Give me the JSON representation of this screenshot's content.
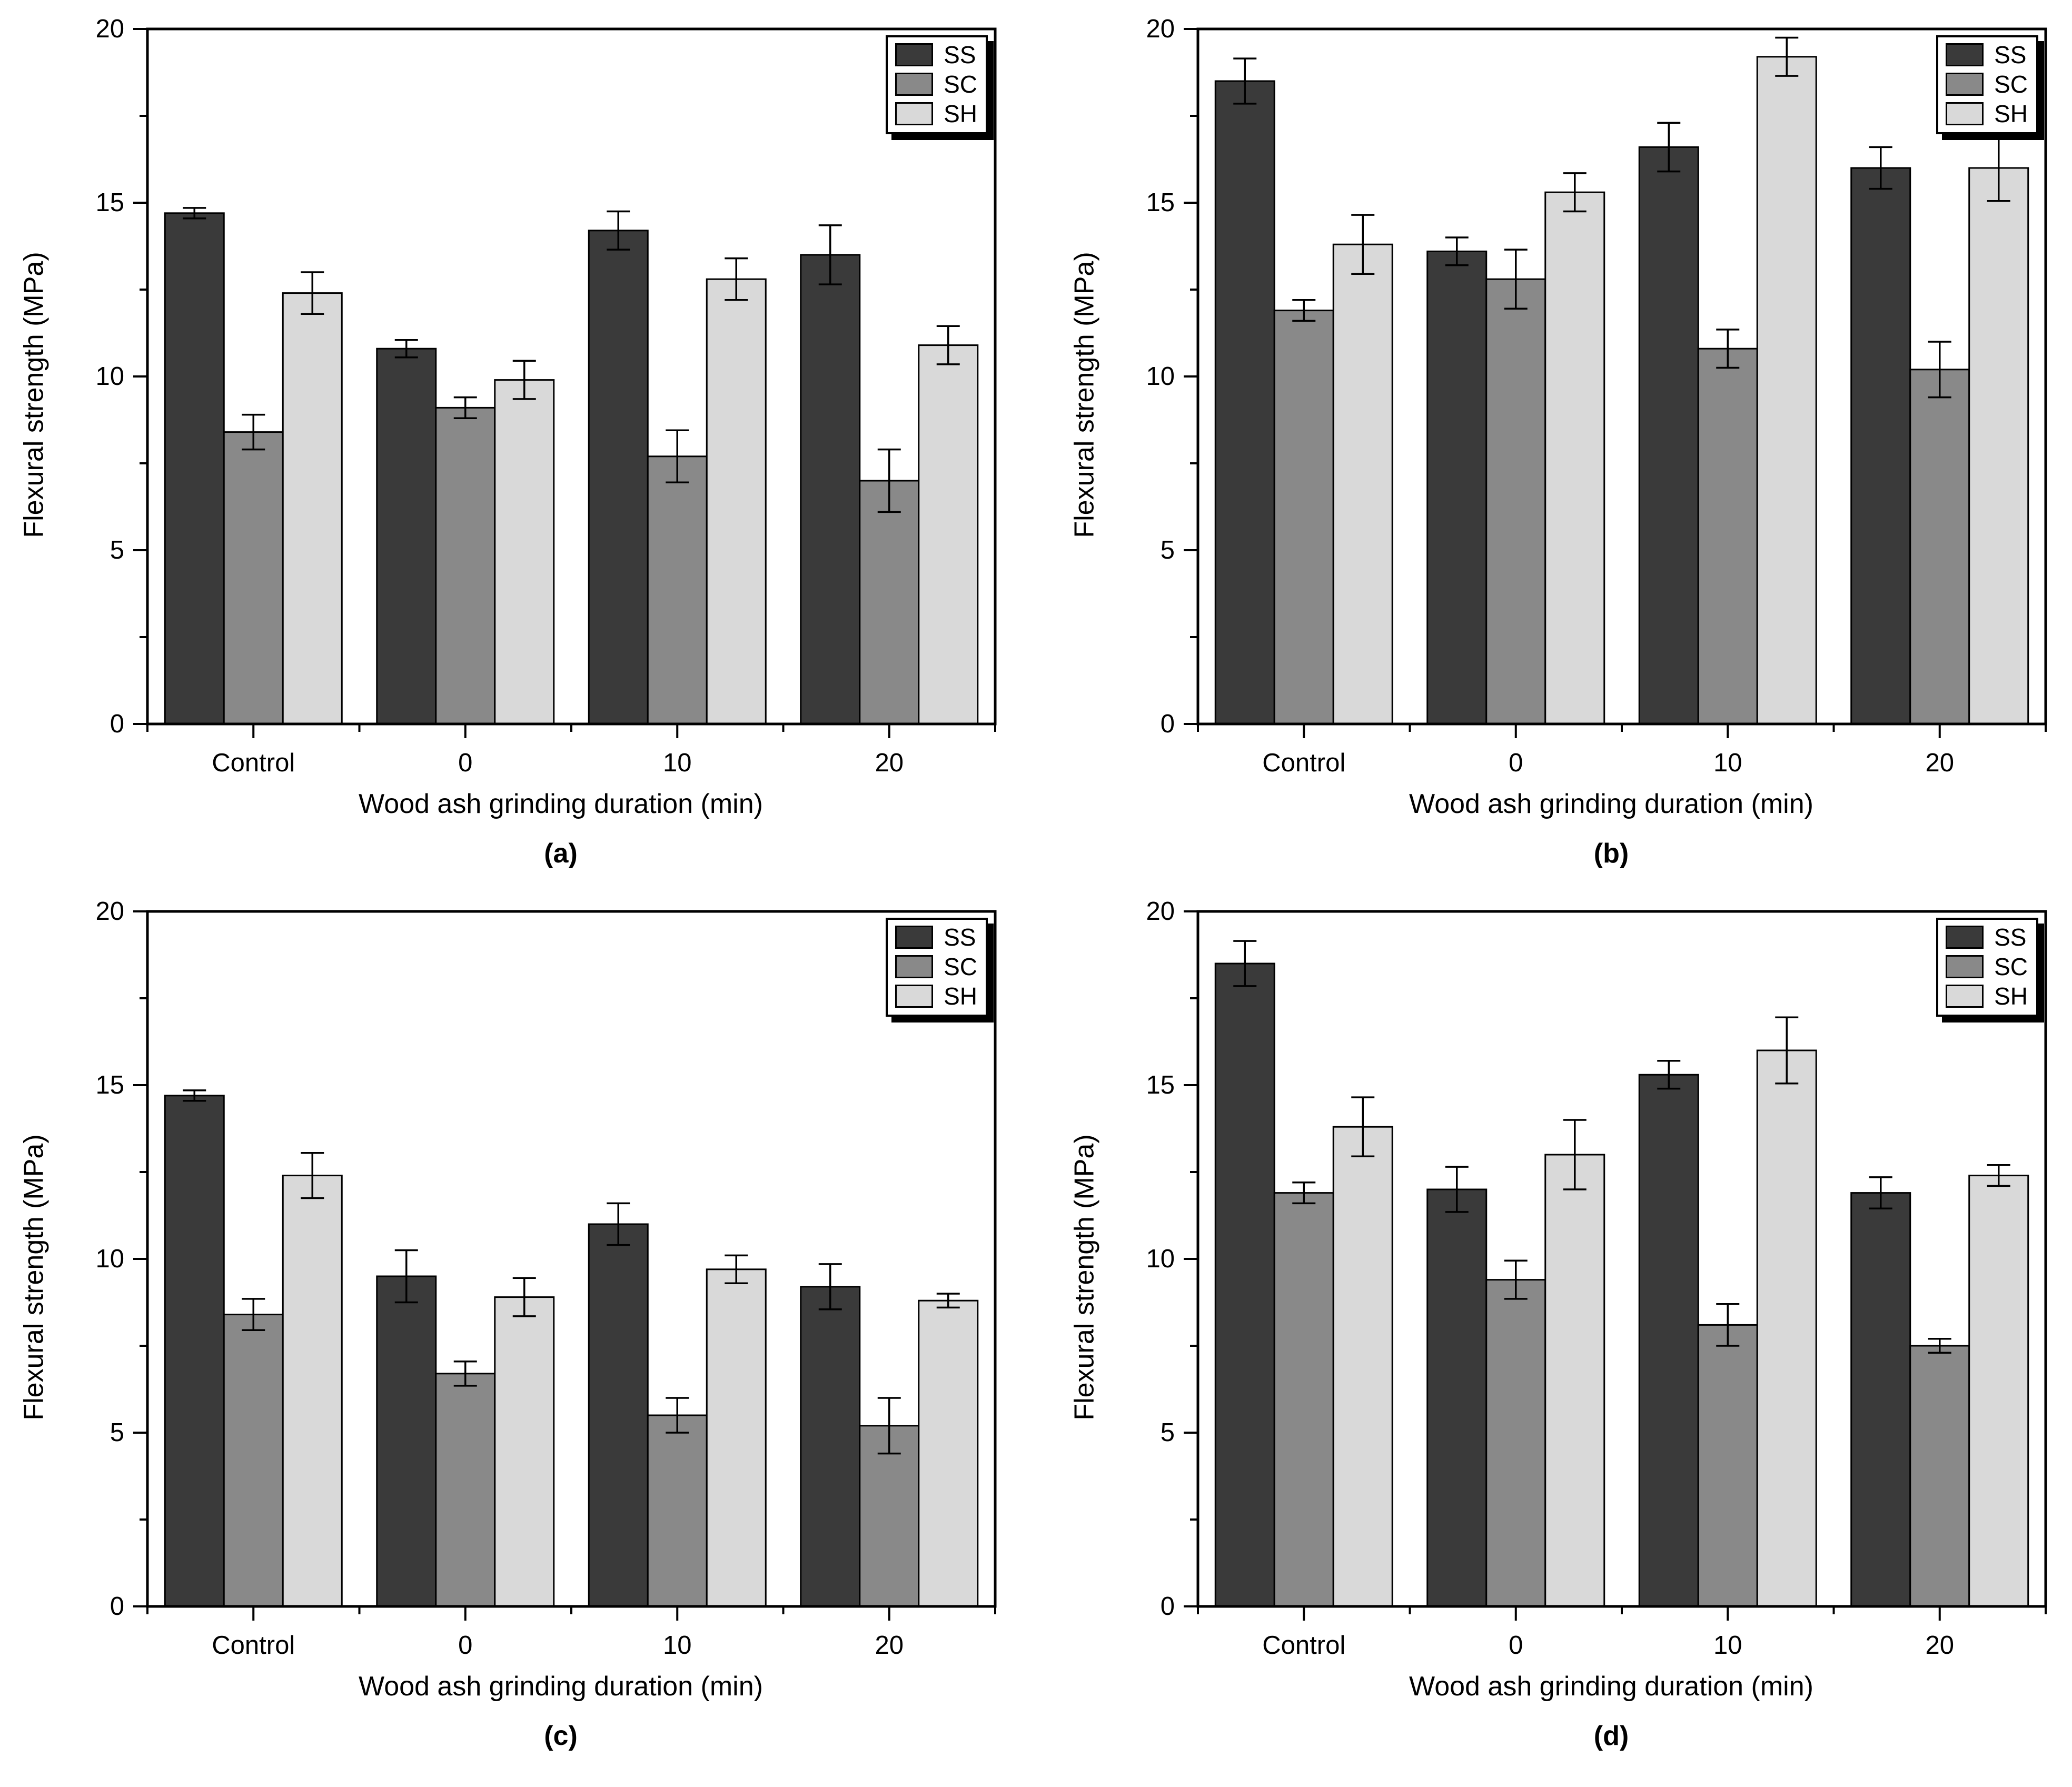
{
  "page": {
    "background": "#ffffff",
    "text_color": "#000000"
  },
  "chart_data": [
    {
      "type": "bar",
      "caption": "(a)",
      "xlabel": "Wood ash grinding duration (min)",
      "ylabel": "Flexural strength (MPa)",
      "ylim": [
        0,
        20
      ],
      "yticks": [
        0,
        5,
        10,
        15,
        20
      ],
      "yminorticks": [
        2.5,
        7.5,
        12.5,
        17.5
      ],
      "categories": [
        "Control",
        "0",
        "10",
        "20"
      ],
      "grid": false,
      "legend_position": "top-right",
      "error_bar_color": "#000000",
      "series": [
        {
          "name": "SS",
          "color": "#3a3a3a",
          "values": [
            14.7,
            10.8,
            14.2,
            13.5
          ],
          "errors": [
            0.15,
            0.25,
            0.55,
            0.85
          ]
        },
        {
          "name": "SC",
          "color": "#898989",
          "values": [
            8.4,
            9.1,
            7.7,
            7.0
          ],
          "errors": [
            0.5,
            0.3,
            0.75,
            0.9
          ]
        },
        {
          "name": "SH",
          "color": "#d9d9d9",
          "values": [
            12.4,
            9.9,
            12.8,
            10.9
          ],
          "errors": [
            0.6,
            0.55,
            0.6,
            0.55
          ]
        }
      ]
    },
    {
      "type": "bar",
      "caption": "(b)",
      "xlabel": "Wood ash grinding duration (min)",
      "ylabel": "Flexural strength (MPa)",
      "ylim": [
        0,
        20
      ],
      "yticks": [
        0,
        5,
        10,
        15,
        20
      ],
      "yminorticks": [
        2.5,
        7.5,
        12.5,
        17.5
      ],
      "categories": [
        "Control",
        "0",
        "10",
        "20"
      ],
      "grid": false,
      "legend_position": "top-right",
      "error_bar_color": "#000000",
      "series": [
        {
          "name": "SS",
          "color": "#3a3a3a",
          "values": [
            18.5,
            13.6,
            16.6,
            16.0
          ],
          "errors": [
            0.65,
            0.4,
            0.7,
            0.6
          ]
        },
        {
          "name": "SC",
          "color": "#898989",
          "values": [
            11.9,
            12.8,
            10.8,
            10.2
          ],
          "errors": [
            0.3,
            0.85,
            0.55,
            0.8
          ]
        },
        {
          "name": "SH",
          "color": "#d9d9d9",
          "values": [
            13.8,
            15.3,
            19.2,
            16.0
          ],
          "errors": [
            0.85,
            0.55,
            0.55,
            0.95
          ]
        }
      ]
    },
    {
      "type": "bar",
      "caption": "(c)",
      "xlabel": "Wood ash grinding duration (min)",
      "ylabel": "Flexural strength (MPa)",
      "ylim": [
        0,
        20
      ],
      "yticks": [
        0,
        5,
        10,
        15,
        20
      ],
      "yminorticks": [
        2.5,
        7.5,
        12.5,
        17.5
      ],
      "categories": [
        "Control",
        "0",
        "10",
        "20"
      ],
      "grid": false,
      "legend_position": "top-right",
      "error_bar_color": "#000000",
      "series": [
        {
          "name": "SS",
          "color": "#3a3a3a",
          "values": [
            14.7,
            9.5,
            11.0,
            9.2
          ],
          "errors": [
            0.15,
            0.75,
            0.6,
            0.65
          ]
        },
        {
          "name": "SC",
          "color": "#898989",
          "values": [
            8.4,
            6.7,
            5.5,
            5.2
          ],
          "errors": [
            0.45,
            0.35,
            0.5,
            0.8
          ]
        },
        {
          "name": "SH",
          "color": "#d9d9d9",
          "values": [
            12.4,
            8.9,
            9.7,
            8.8
          ],
          "errors": [
            0.65,
            0.55,
            0.4,
            0.2
          ]
        }
      ]
    },
    {
      "type": "bar",
      "caption": "(d)",
      "xlabel": "Wood ash grinding duration (min)",
      "ylabel": "Flexural strength (MPa)",
      "ylim": [
        0,
        20
      ],
      "yticks": [
        0,
        5,
        10,
        15,
        20
      ],
      "yminorticks": [
        2.5,
        7.5,
        12.5,
        17.5
      ],
      "categories": [
        "Control",
        "0",
        "10",
        "20"
      ],
      "grid": false,
      "legend_position": "top-right",
      "error_bar_color": "#000000",
      "series": [
        {
          "name": "SS",
          "color": "#3a3a3a",
          "values": [
            18.5,
            12.0,
            15.3,
            11.9
          ],
          "errors": [
            0.65,
            0.65,
            0.4,
            0.45
          ]
        },
        {
          "name": "SC",
          "color": "#898989",
          "values": [
            11.9,
            9.4,
            8.1,
            7.5
          ],
          "errors": [
            0.3,
            0.55,
            0.6,
            0.2
          ]
        },
        {
          "name": "SH",
          "color": "#d9d9d9",
          "values": [
            13.8,
            13.0,
            16.0,
            12.4
          ],
          "errors": [
            0.85,
            1.0,
            0.95,
            0.3
          ]
        }
      ]
    }
  ]
}
